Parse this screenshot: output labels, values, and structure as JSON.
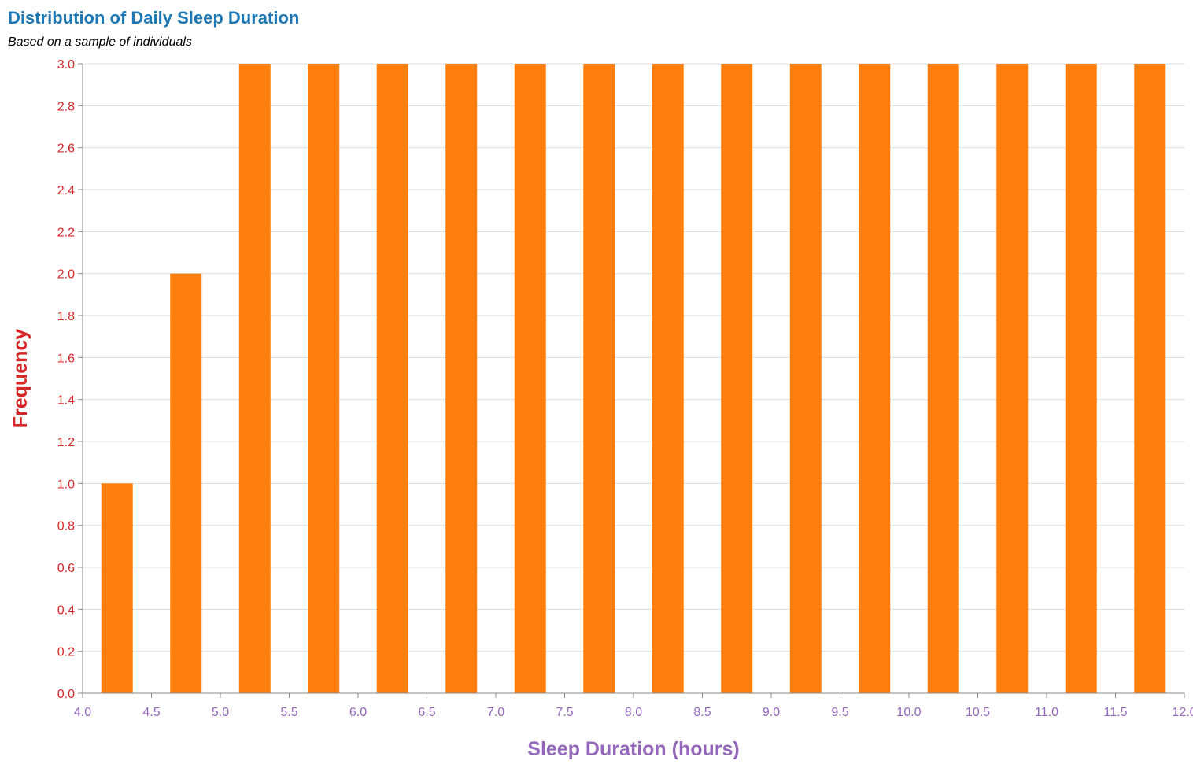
{
  "chart_data": {
    "type": "bar",
    "title": "Distribution of Daily Sleep Duration",
    "subtitle": "Based on a sample of individuals",
    "xlabel": "Sleep Duration (hours)",
    "ylabel": "Frequency",
    "xlim": [
      4.0,
      12.0
    ],
    "ylim": [
      0.0,
      3.0
    ],
    "x_ticks": [
      "4.0",
      "4.5",
      "5.0",
      "5.5",
      "6.0",
      "6.5",
      "7.0",
      "7.5",
      "8.0",
      "8.5",
      "9.0",
      "9.5",
      "10.0",
      "10.5",
      "11.0",
      "11.5",
      "12.0"
    ],
    "y_ticks": [
      "0.0",
      "0.2",
      "0.4",
      "0.6",
      "0.8",
      "1.0",
      "1.2",
      "1.4",
      "1.6",
      "1.8",
      "2.0",
      "2.2",
      "2.4",
      "2.6",
      "2.8",
      "3.0"
    ],
    "bins": [
      {
        "start": 4.0,
        "end": 4.5,
        "value": 1
      },
      {
        "start": 4.5,
        "end": 5.0,
        "value": 2
      },
      {
        "start": 5.0,
        "end": 5.5,
        "value": 3
      },
      {
        "start": 5.5,
        "end": 6.0,
        "value": 3
      },
      {
        "start": 6.0,
        "end": 6.5,
        "value": 3
      },
      {
        "start": 6.5,
        "end": 7.0,
        "value": 3
      },
      {
        "start": 7.0,
        "end": 7.5,
        "value": 3
      },
      {
        "start": 7.5,
        "end": 8.0,
        "value": 3
      },
      {
        "start": 8.0,
        "end": 8.5,
        "value": 3
      },
      {
        "start": 8.5,
        "end": 9.0,
        "value": 3
      },
      {
        "start": 9.0,
        "end": 9.5,
        "value": 3
      },
      {
        "start": 9.5,
        "end": 10.0,
        "value": 3
      },
      {
        "start": 10.0,
        "end": 10.5,
        "value": 3
      },
      {
        "start": 10.5,
        "end": 11.0,
        "value": 3
      },
      {
        "start": 11.0,
        "end": 11.5,
        "value": 3
      },
      {
        "start": 11.5,
        "end": 12.0,
        "value": 3
      }
    ],
    "grid": true,
    "legend": "none",
    "colors": {
      "bar": "#ff7f0e",
      "title": "#1f77b4",
      "subtitle": "#000000",
      "x_axis": "#9467bd",
      "y_axis": "#d62728",
      "grid": "#dddddd",
      "domain": "#888888"
    }
  }
}
